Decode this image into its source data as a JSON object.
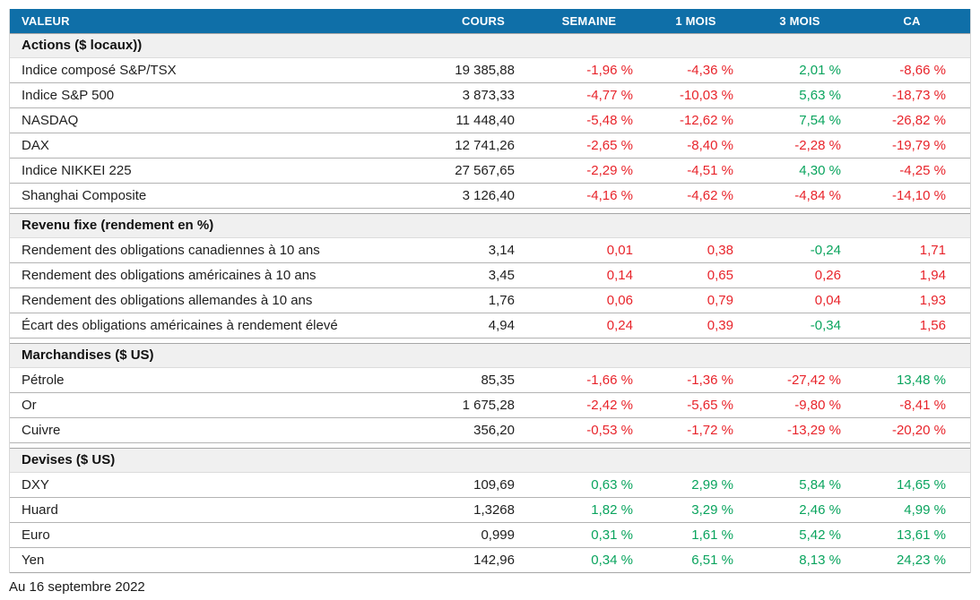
{
  "colors": {
    "header_bg": "#0F6FA8",
    "header_text": "#FFFFFF",
    "negative": "#E8242B",
    "positive": "#0AA45E",
    "body_text": "#1F1F1F"
  },
  "table": {
    "columns": [
      "VALEUR",
      "COURS",
      "SEMAINE",
      "1 MOIS",
      "3 MOIS",
      "CA"
    ],
    "sections": [
      {
        "title": "Actions ($ locaux))",
        "rows": [
          {
            "label": "Indice composé S&P/TSX",
            "cours": "19 385,88",
            "changes": [
              "-1,96 %",
              "-4,36 %",
              "2,01 %",
              "-8,66 %"
            ],
            "change_colors": [
              "negative",
              "negative",
              "positive",
              "negative"
            ]
          },
          {
            "label": "Indice S&P 500",
            "cours": "3 873,33",
            "changes": [
              "-4,77 %",
              "-10,03 %",
              "5,63 %",
              "-18,73 %"
            ],
            "change_colors": [
              "negative",
              "negative",
              "positive",
              "negative"
            ]
          },
          {
            "label": "NASDAQ",
            "cours": "11 448,40",
            "changes": [
              "-5,48 %",
              "-12,62 %",
              "7,54 %",
              "-26,82 %"
            ],
            "change_colors": [
              "negative",
              "negative",
              "positive",
              "negative"
            ]
          },
          {
            "label": "DAX",
            "cours": "12 741,26",
            "changes": [
              "-2,65 %",
              "-8,40 %",
              "-2,28 %",
              "-19,79 %"
            ],
            "change_colors": [
              "negative",
              "negative",
              "negative",
              "negative"
            ]
          },
          {
            "label": "Indice NIKKEI 225",
            "cours": "27 567,65",
            "changes": [
              "-2,29 %",
              "-4,51 %",
              "4,30 %",
              "-4,25 %"
            ],
            "change_colors": [
              "negative",
              "negative",
              "positive",
              "negative"
            ]
          },
          {
            "label": "Shanghai Composite",
            "cours": "3 126,40",
            "changes": [
              "-4,16 %",
              "-4,62 %",
              "-4,84 %",
              "-14,10 %"
            ],
            "change_colors": [
              "negative",
              "negative",
              "negative",
              "negative"
            ]
          }
        ]
      },
      {
        "title": "Revenu fixe (rendement en %)",
        "rows": [
          {
            "label": "Rendement des obligations canadiennes à 10 ans",
            "cours": "3,14",
            "changes": [
              "0,01",
              "0,38",
              "-0,24",
              "1,71"
            ],
            "change_colors": [
              "negative",
              "negative",
              "positive",
              "negative"
            ]
          },
          {
            "label": "Rendement des obligations américaines à 10 ans",
            "cours": "3,45",
            "changes": [
              "0,14",
              "0,65",
              "0,26",
              "1,94"
            ],
            "change_colors": [
              "negative",
              "negative",
              "negative",
              "negative"
            ]
          },
          {
            "label": "Rendement des obligations allemandes à 10 ans",
            "cours": "1,76",
            "changes": [
              "0,06",
              "0,79",
              "0,04",
              "1,93"
            ],
            "change_colors": [
              "negative",
              "negative",
              "negative",
              "negative"
            ]
          },
          {
            "label": "Écart des obligations américaines à rendement élevé",
            "cours": "4,94",
            "changes": [
              "0,24",
              "0,39",
              "-0,34",
              "1,56"
            ],
            "change_colors": [
              "negative",
              "negative",
              "positive",
              "negative"
            ]
          }
        ]
      },
      {
        "title": "Marchandises ($ US)",
        "rows": [
          {
            "label": "Pétrole",
            "cours": "85,35",
            "changes": [
              "-1,66 %",
              "-1,36 %",
              "-27,42 %",
              "13,48 %"
            ],
            "change_colors": [
              "negative",
              "negative",
              "negative",
              "positive"
            ]
          },
          {
            "label": "Or",
            "cours": "1 675,28",
            "changes": [
              "-2,42 %",
              "-5,65 %",
              "-9,80 %",
              "-8,41 %"
            ],
            "change_colors": [
              "negative",
              "negative",
              "negative",
              "negative"
            ]
          },
          {
            "label": "Cuivre",
            "cours": "356,20",
            "changes": [
              "-0,53 %",
              "-1,72 %",
              "-13,29 %",
              "-20,20 %"
            ],
            "change_colors": [
              "negative",
              "negative",
              "negative",
              "negative"
            ]
          }
        ]
      },
      {
        "title": "Devises ($ US)",
        "rows": [
          {
            "label": "DXY",
            "cours": "109,69",
            "changes": [
              "0,63 %",
              "2,99 %",
              "5,84 %",
              "14,65 %"
            ],
            "change_colors": [
              "positive",
              "positive",
              "positive",
              "positive"
            ]
          },
          {
            "label": "Huard",
            "cours": "1,3268",
            "changes": [
              "1,82 %",
              "3,29 %",
              "2,46 %",
              "4,99 %"
            ],
            "change_colors": [
              "positive",
              "positive",
              "positive",
              "positive"
            ]
          },
          {
            "label": "Euro",
            "cours": "0,999",
            "changes": [
              "0,31 %",
              "1,61 %",
              "5,42 %",
              "13,61 %"
            ],
            "change_colors": [
              "positive",
              "positive",
              "positive",
              "positive"
            ]
          },
          {
            "label": "Yen",
            "cours": "142,96",
            "changes": [
              "0,34 %",
              "6,51 %",
              "8,13 %",
              "24,23 %"
            ],
            "change_colors": [
              "positive",
              "positive",
              "positive",
              "positive"
            ]
          }
        ]
      }
    ]
  },
  "footer": {
    "as_of": "Au 16 septembre 2022"
  }
}
